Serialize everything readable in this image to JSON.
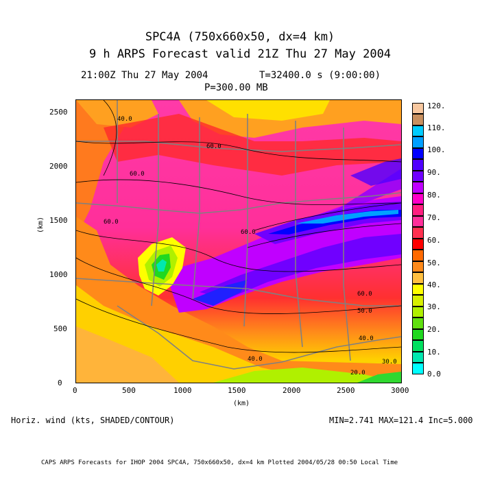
{
  "header": {
    "title": "SPC4A (750x660x50, dx=4 km)",
    "subtitle": "9 h ARPS Forecast valid 21Z Thu 27 May 2004",
    "valid_time": "21:00Z Thu 27 May 2004",
    "model_time": "T=32400.0 s (9:00:00)",
    "level": "P=300.00 MB"
  },
  "axes": {
    "x_label": "(km)",
    "y_label": "(km)",
    "x_ticks": [
      "0",
      "500",
      "1000",
      "1500",
      "2000",
      "2500",
      "3000"
    ],
    "y_ticks": [
      "0",
      "500",
      "1000",
      "1500",
      "2000",
      "2500"
    ],
    "x_range": [
      0,
      3000
    ],
    "y_range": [
      0,
      2640
    ]
  },
  "colorbar": {
    "levels": [
      "0.0",
      "10.",
      "20.",
      "30.",
      "40.",
      "50.",
      "60.",
      "70.",
      "80.",
      "90.",
      "100.",
      "110.",
      "120."
    ],
    "colors": [
      "#00ffff",
      "#00e8b0",
      "#20d820",
      "#b0f000",
      "#ffff00",
      "#ffc040",
      "#ff6a00",
      "#ff0000",
      "#ff1f80",
      "#ff00c8",
      "#c000ff",
      "#7000ff",
      "#0000ff",
      "#00a0ff",
      "#00ccff",
      "#c89060",
      "#f8c8a0"
    ]
  },
  "field": {
    "description": "Horiz. wind (kts, SHADED/CONTOUR)",
    "stats": "MIN=2.741 MAX=121.4 Inc=5.000"
  },
  "contour_labels": [
    {
      "text": "60.0"
    },
    {
      "text": "60.0"
    },
    {
      "text": "60.0"
    },
    {
      "text": "40.0"
    },
    {
      "text": "60.0"
    },
    {
      "text": "60.0"
    },
    {
      "text": "50.0"
    },
    {
      "text": "40.0"
    },
    {
      "text": "30.0"
    },
    {
      "text": "20.0"
    },
    {
      "text": "40.0"
    }
  ],
  "footer": "CAPS ARPS Forecasts for IHOP 2004  SPC4A, 750x660x50, dx=4 km  Plotted 2004/05/28 00:50 Local Time"
}
